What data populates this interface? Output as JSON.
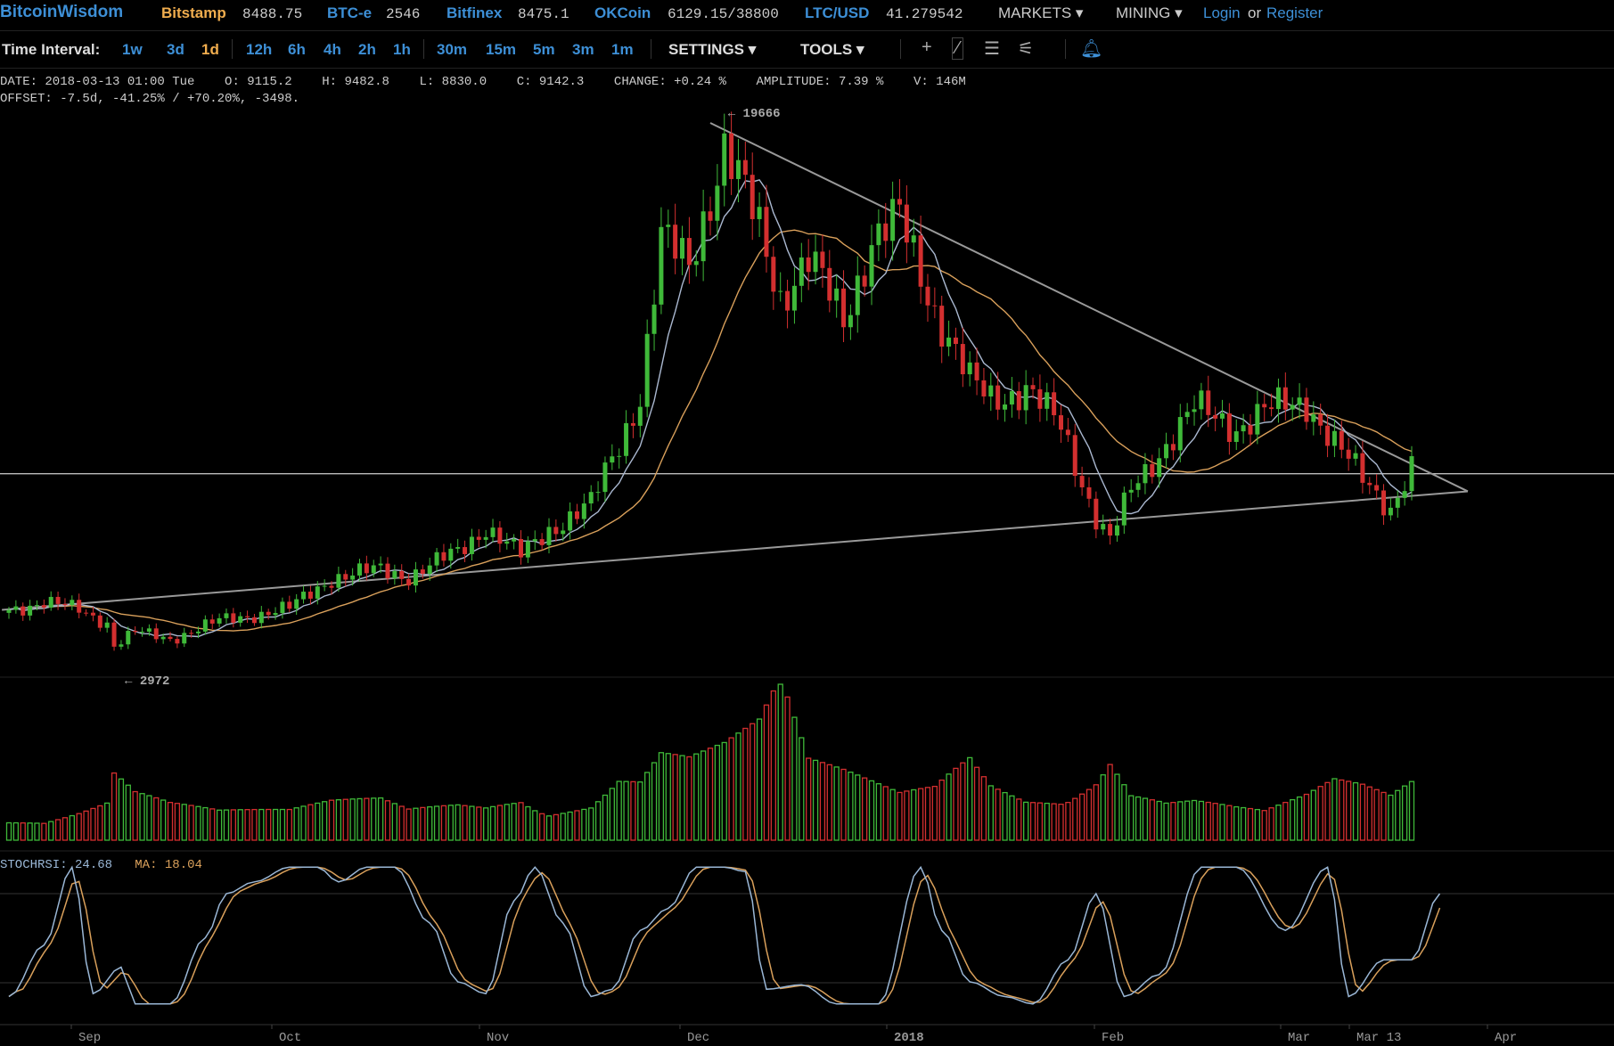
{
  "header": {
    "brand": "BitcoinWisdom",
    "markets": [
      {
        "name": "Bitstamp",
        "price": "8488.75",
        "active": true
      },
      {
        "name": "BTC-e",
        "price": "2546",
        "active": false
      },
      {
        "name": "Bitfinex",
        "price": "8475.1",
        "active": false
      },
      {
        "name": "OKCoin",
        "price": "6129.15/38800",
        "active": false
      },
      {
        "name": "LTC/USD",
        "price": "41.279542",
        "active": false
      }
    ],
    "markets_menu": "MARKETS",
    "mining_menu": "MINING",
    "login": "Login",
    "or": "or",
    "register": "Register"
  },
  "toolbar": {
    "label": "Time Interval:",
    "intervals": [
      "1w",
      "3d",
      "1d",
      "12h",
      "6h",
      "4h",
      "2h",
      "1h",
      "30m",
      "15m",
      "5m",
      "3m",
      "1m"
    ],
    "selected": "1d",
    "settings": "SETTINGS",
    "tools": "TOOLS",
    "tool_icons": [
      "crosshair-icon",
      "draw-line-icon",
      "horizontal-lines-icon",
      "fan-icon",
      "bell-icon"
    ]
  },
  "info": {
    "line1": "DATE: 2018-03-13 01:00 Tue    O: 9115.2    H: 9482.8    L: 8830.0    C: 9142.3    CHANGE: +0.24 %    AMPLITUDE: 7.39 %    V: 146M",
    "line2": "OFFSET: -7.5d, -41.25% / +70.20%, -3498."
  },
  "colors": {
    "up": "#3fb939",
    "down": "#d32f2f",
    "ma_fast": "#aab8d0",
    "ma_slow": "#d9a05b",
    "trendline": "#999999",
    "stoch_k": "#9ab7d6",
    "stoch_d": "#d9a05b"
  },
  "chart_data": {
    "type": "candlestick",
    "price_ylim": [
      2600,
      20400
    ],
    "annotations": {
      "high": "19666",
      "low": "2972"
    },
    "x_labels": [
      "Sep",
      "Oct",
      "Nov",
      "Dec",
      "2018",
      "Feb",
      "Mar",
      "Mar 13",
      "Apr"
    ],
    "anchors": [
      {
        "day": 0,
        "close": 4700,
        "vol": 30
      },
      {
        "day": 5,
        "close": 4950,
        "vol": 25
      },
      {
        "day": 10,
        "close": 4700,
        "vol": 35
      },
      {
        "day": 14,
        "close": 4300,
        "vol": 45
      },
      {
        "day": 15,
        "close": 3600,
        "vol": 80
      },
      {
        "day": 18,
        "close": 4000,
        "vol": 55
      },
      {
        "day": 23,
        "close": 3800,
        "vol": 40
      },
      {
        "day": 30,
        "close": 4350,
        "vol": 30
      },
      {
        "day": 40,
        "close": 4750,
        "vol": 30
      },
      {
        "day": 46,
        "close": 5700,
        "vol": 40
      },
      {
        "day": 53,
        "close": 5950,
        "vol": 45
      },
      {
        "day": 57,
        "close": 5750,
        "vol": 35
      },
      {
        "day": 64,
        "close": 6500,
        "vol": 45
      },
      {
        "day": 68,
        "close": 7300,
        "vol": 45
      },
      {
        "day": 73,
        "close": 6400,
        "vol": 60
      },
      {
        "day": 77,
        "close": 7200,
        "vol": 40
      },
      {
        "day": 83,
        "close": 8000,
        "vol": 45
      },
      {
        "day": 87,
        "close": 9900,
        "vol": 75
      },
      {
        "day": 90,
        "close": 11400,
        "vol": 70
      },
      {
        "day": 93,
        "close": 16200,
        "vol": 100
      },
      {
        "day": 97,
        "close": 15500,
        "vol": 90
      },
      {
        "day": 102,
        "close": 19100,
        "vol": 100
      },
      {
        "day": 107,
        "close": 16600,
        "vol": 120
      },
      {
        "day": 110,
        "close": 14500,
        "vol": 160
      },
      {
        "day": 114,
        "close": 15600,
        "vol": 80
      },
      {
        "day": 119,
        "close": 13800,
        "vol": 70
      },
      {
        "day": 123,
        "close": 16200,
        "vol": 60
      },
      {
        "day": 127,
        "close": 16900,
        "vol": 50
      },
      {
        "day": 132,
        "close": 14100,
        "vol": 60
      },
      {
        "day": 137,
        "close": 11800,
        "vol": 100
      },
      {
        "day": 140,
        "close": 11300,
        "vol": 70
      },
      {
        "day": 145,
        "close": 11600,
        "vol": 55
      },
      {
        "day": 150,
        "close": 10400,
        "vol": 60
      },
      {
        "day": 155,
        "close": 7600,
        "vol": 85
      },
      {
        "day": 157,
        "close": 6900,
        "vol": 110
      },
      {
        "day": 160,
        "close": 8400,
        "vol": 60
      },
      {
        "day": 165,
        "close": 9900,
        "vol": 45
      },
      {
        "day": 169,
        "close": 11000,
        "vol": 45
      },
      {
        "day": 175,
        "close": 10400,
        "vol": 35
      },
      {
        "day": 179,
        "close": 10900,
        "vol": 30
      },
      {
        "day": 185,
        "close": 11200,
        "vol": 45
      },
      {
        "day": 189,
        "close": 9900,
        "vol": 60
      },
      {
        "day": 193,
        "close": 8800,
        "vol": 55
      },
      {
        "day": 197,
        "close": 7900,
        "vol": 45
      },
      {
        "day": 200,
        "close": 9100,
        "vol": 60
      }
    ],
    "stochrsi": {
      "value": "24.68",
      "ma": "18.04",
      "label": "STOCHRSI:",
      "ma_label": "MA:",
      "anchors": [
        [
          0,
          0.1
        ],
        [
          5,
          0.45
        ],
        [
          9,
          0.98
        ],
        [
          12,
          0.12
        ],
        [
          16,
          0.3
        ],
        [
          18,
          0.05
        ],
        [
          23,
          0.05
        ],
        [
          28,
          0.5
        ],
        [
          31,
          0.8
        ],
        [
          35,
          0.88
        ],
        [
          40,
          0.98
        ],
        [
          44,
          0.98
        ],
        [
          47,
          0.88
        ],
        [
          51,
          0.98
        ],
        [
          55,
          0.98
        ],
        [
          60,
          0.6
        ],
        [
          64,
          0.2
        ],
        [
          68,
          0.12
        ],
        [
          72,
          0.75
        ],
        [
          75,
          0.98
        ],
        [
          79,
          0.6
        ],
        [
          83,
          0.1
        ],
        [
          86,
          0.15
        ],
        [
          90,
          0.55
        ],
        [
          94,
          0.7
        ],
        [
          98,
          0.98
        ],
        [
          102,
          0.98
        ],
        [
          105,
          0.95
        ],
        [
          108,
          0.15
        ],
        [
          113,
          0.18
        ],
        [
          118,
          0.05
        ],
        [
          124,
          0.05
        ],
        [
          130,
          0.98
        ],
        [
          133,
          0.55
        ],
        [
          137,
          0.2
        ],
        [
          142,
          0.1
        ],
        [
          146,
          0.05
        ],
        [
          151,
          0.35
        ],
        [
          155,
          0.8
        ],
        [
          159,
          0.1
        ],
        [
          164,
          0.25
        ],
        [
          170,
          0.98
        ],
        [
          175,
          0.98
        ],
        [
          182,
          0.55
        ],
        [
          188,
          0.98
        ],
        [
          191,
          0.1
        ],
        [
          196,
          0.35
        ],
        [
          200,
          0.35
        ],
        [
          204,
          0.8
        ]
      ]
    },
    "trendlines": [
      {
        "from": {
          "day": -1,
          "price": 4700
        },
        "to": {
          "day": 208,
          "price": 8400
        }
      },
      {
        "from": {
          "day": 100,
          "price": 19900
        },
        "to": {
          "day": 208,
          "price": 8400
        }
      }
    ],
    "horizontal": {
      "price": 8950
    },
    "xlabel": "",
    "ylabel": ""
  }
}
